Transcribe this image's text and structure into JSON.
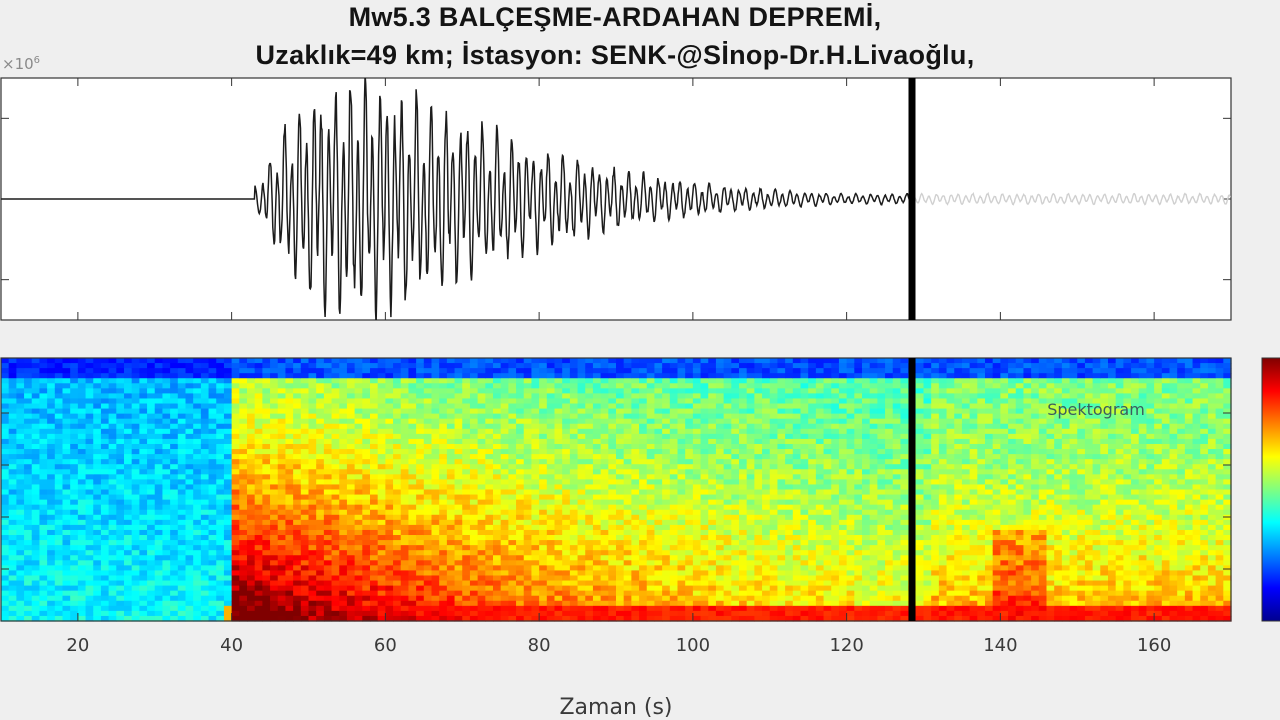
{
  "chart_data": [
    {
      "type": "line",
      "panel": "seismogram",
      "title_line1": "Mw5.3 BALÇEŞME-ARDAHAN DEPREMİ,",
      "title_line2": "Uzaklık=49 km; İstasyon: SENK-@Sİnop-Dr.H.Livaoğlu,",
      "y_exponent_label": "×10",
      "y_exponent_power": "6",
      "xlim": [
        10,
        170
      ],
      "ylim": [
        -1.5,
        1.5
      ],
      "y_ticks": [
        -1,
        0,
        1
      ],
      "marker_x": 128.5,
      "signal_onset": 43,
      "peak_time": 56,
      "peak_amplitude": 1.35,
      "x_ticks": [
        20,
        40,
        60,
        80,
        100,
        120,
        140,
        160
      ]
    },
    {
      "type": "heatmap",
      "panel": "spectrogram",
      "annotation": "Spektogram",
      "xlim": [
        10,
        170
      ],
      "x_ticks": [
        20,
        40,
        60,
        80,
        100,
        120,
        140,
        160
      ],
      "tick_labels": [
        "20",
        "40",
        "60",
        "80",
        "100",
        "120",
        "140",
        "160"
      ],
      "xlabel": "Zaman (s)",
      "marker_x": 128.5,
      "energy_onset": 40.5,
      "colormap": [
        "#00008f",
        "#0000ff",
        "#0080ff",
        "#00ffff",
        "#80ff80",
        "#ffff00",
        "#ff8000",
        "#ff0000",
        "#800000"
      ]
    }
  ]
}
